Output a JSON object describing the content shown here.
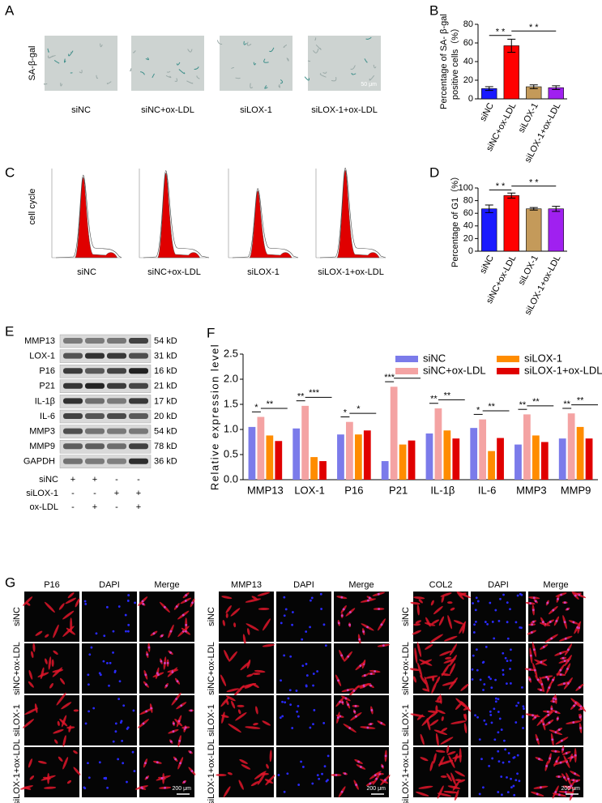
{
  "panel_labels": [
    "A",
    "B",
    "C",
    "D",
    "E",
    "F",
    "G"
  ],
  "senescence": {
    "ylabel": "SA-β-gal",
    "groups": [
      "siNC",
      "siNC+ox-LDL",
      "siLOX-1",
      "siLOX-1+ox-LDL"
    ],
    "scale_bar": "50 μm"
  },
  "cell_cycle": {
    "ylabel": "cell cycle",
    "groups": [
      "siNC",
      "siNC+ox-LDL",
      "siLOX-1",
      "siLOX-1+ox-LDL"
    ]
  },
  "western_blot": {
    "proteins": [
      {
        "name": "MMP13",
        "size": "54 kD"
      },
      {
        "name": "LOX-1",
        "size": "31 kD"
      },
      {
        "name": "P16",
        "size": "16 kD"
      },
      {
        "name": "P21",
        "size": "21 kD"
      },
      {
        "name": "IL-1β",
        "size": "17 kD"
      },
      {
        "name": "IL-6",
        "size": "20 kD"
      },
      {
        "name": "MMP3",
        "size": "54 kD"
      },
      {
        "name": "MMP9",
        "size": "78 kD"
      },
      {
        "name": "GAPDH",
        "size": "36 kD"
      }
    ],
    "conditions": [
      {
        "name": "siNC",
        "signs": [
          "+",
          "+",
          "-",
          "-"
        ]
      },
      {
        "name": "siLOX-1",
        "signs": [
          "-",
          "-",
          "+",
          "+"
        ]
      },
      {
        "name": "ox-LDL",
        "signs": [
          "-",
          "+",
          "-",
          "+"
        ]
      }
    ]
  },
  "immunofluorescence": [
    {
      "channels": [
        "P16",
        "DAPI",
        "Merge"
      ],
      "rows": [
        "siNC",
        "siNC+ox-LDL",
        "siLOX-1",
        "siLOX-1+ox-LDL"
      ],
      "scale_bar": "200 μm"
    },
    {
      "channels": [
        "MMP13",
        "DAPI",
        "Merge"
      ],
      "rows": [
        "siNC",
        "siNC+ox-LDL",
        "siLOX-1",
        "siLOX-1+ox-LDL"
      ],
      "scale_bar": "200 μm"
    },
    {
      "channels": [
        "COL2",
        "DAPI",
        "Merge"
      ],
      "rows": [
        "siNC",
        "siNC+ox-LDL",
        "siLOX-1",
        "siLOX-1+ox-LDL"
      ],
      "scale_bar": "200 μm"
    }
  ],
  "chart_data": [
    {
      "type": "bar",
      "ylabel": [
        "Percentage of SA- β-gal",
        "positive cells（%）"
      ],
      "categories": [
        "siNC",
        "siNC+ox-LDL",
        "siLOX-1",
        "siLOX-1+ox-LDL"
      ],
      "values": [
        11,
        57,
        13,
        12
      ],
      "errors": [
        2,
        7,
        2,
        2
      ],
      "colors": [
        "#1a1aff",
        "#ff0000",
        "#c49a5a",
        "#a020f0"
      ],
      "ylim": [
        0,
        80
      ],
      "yticks": [
        0,
        20,
        40,
        60,
        80
      ],
      "annotations": [
        {
          "text": "* *",
          "pair": [
            0,
            1
          ]
        },
        {
          "text": "* *",
          "pair": [
            1,
            3
          ]
        }
      ]
    },
    {
      "type": "bar",
      "ylabel": [
        "Percentage of G1（%）"
      ],
      "categories": [
        "siNC",
        "siNC+ox-LDL",
        "siLOX-1",
        "siLOX-1+ox-LDL"
      ],
      "values": [
        67,
        88,
        67,
        67
      ],
      "errors": [
        6,
        4,
        2,
        4
      ],
      "colors": [
        "#1a1aff",
        "#ff0000",
        "#c49a5a",
        "#a020f0"
      ],
      "ylim": [
        0,
        100
      ],
      "yticks": [
        0,
        20,
        40,
        60,
        80,
        100
      ],
      "annotations": [
        {
          "text": "* *",
          "pair": [
            0,
            1
          ]
        },
        {
          "text": "* *",
          "pair": [
            1,
            3
          ]
        }
      ]
    },
    {
      "type": "grouped_bar",
      "ylabel": [
        "Relative expression level"
      ],
      "categories": [
        "MMP13",
        "LOX-1",
        "P16",
        "P21",
        "IL-1β",
        "IL-6",
        "MMP3",
        "MMP9"
      ],
      "series": [
        {
          "name": "siNC",
          "color": "#7b7bea",
          "values": [
            1.05,
            1.02,
            0.9,
            0.37,
            0.92,
            1.03,
            0.7,
            0.82
          ]
        },
        {
          "name": "siNC+ox-LDL",
          "color": "#f4a3a3",
          "values": [
            1.25,
            1.47,
            1.15,
            1.85,
            1.42,
            1.2,
            1.3,
            1.32
          ]
        },
        {
          "name": "siLOX-1",
          "color": "#ff8c00",
          "values": [
            0.88,
            0.45,
            0.9,
            0.7,
            0.98,
            0.57,
            0.88,
            1.05
          ]
        },
        {
          "name": "siLOX-1+ox-LDL",
          "color": "#e00000",
          "values": [
            0.77,
            0.37,
            0.98,
            0.78,
            0.82,
            0.83,
            0.75,
            0.82
          ]
        }
      ],
      "ylim": [
        0,
        2.5
      ],
      "yticks": [
        {
          "value": 0,
          "label": "0.0"
        },
        {
          "value": 0.5,
          "label": "0.5"
        },
        {
          "value": 1,
          "label": "1.0"
        },
        {
          "value": 1.5,
          "label": "1.5"
        },
        {
          "value": 2,
          "label": "2.0"
        },
        {
          "value": 2.5,
          "label": "2.5"
        }
      ],
      "legend": "top-right",
      "annotations": [
        {
          "category": 0,
          "pair": [
            0,
            1
          ],
          "text": "*"
        },
        {
          "category": 0,
          "pair": [
            1,
            3
          ],
          "text": "**"
        },
        {
          "category": 1,
          "pair": [
            0,
            1
          ],
          "text": "**"
        },
        {
          "category": 1,
          "pair": [
            1,
            3
          ],
          "text": "***"
        },
        {
          "category": 2,
          "pair": [
            0,
            1
          ],
          "text": "*"
        },
        {
          "category": 2,
          "pair": [
            1,
            3
          ],
          "text": "*"
        },
        {
          "category": 3,
          "pair": [
            0,
            1
          ],
          "text": "***"
        },
        {
          "category": 3,
          "pair": [
            1,
            3
          ],
          "text": "***"
        },
        {
          "category": 4,
          "pair": [
            0,
            1
          ],
          "text": "**"
        },
        {
          "category": 4,
          "pair": [
            1,
            3
          ],
          "text": "**"
        },
        {
          "category": 5,
          "pair": [
            0,
            1
          ],
          "text": "*"
        },
        {
          "category": 5,
          "pair": [
            1,
            3
          ],
          "text": "**"
        },
        {
          "category": 6,
          "pair": [
            0,
            1
          ],
          "text": "**"
        },
        {
          "category": 6,
          "pair": [
            1,
            3
          ],
          "text": "**"
        },
        {
          "category": 7,
          "pair": [
            0,
            1
          ],
          "text": "**"
        },
        {
          "category": 7,
          "pair": [
            1,
            3
          ],
          "text": "**"
        }
      ]
    }
  ]
}
